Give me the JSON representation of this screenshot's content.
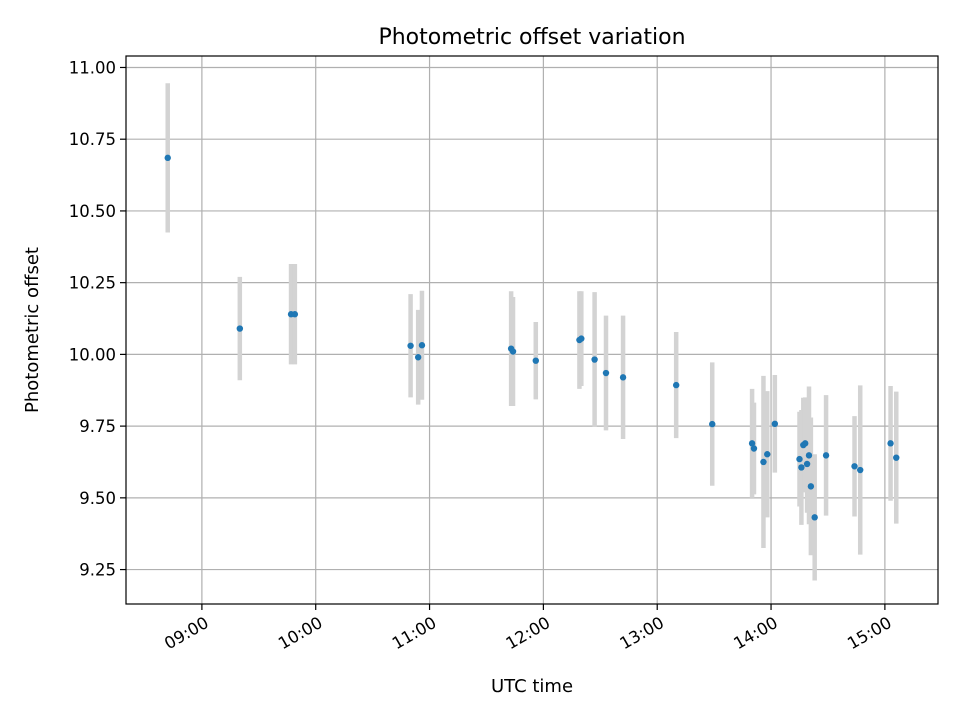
{
  "chart_data": {
    "type": "scatter",
    "title": "Photometric offset variation",
    "xlabel": "UTC time",
    "ylabel": "Photometric offset",
    "xlim": [
      "08:20",
      "15:28"
    ],
    "ylim": [
      9.13,
      11.04
    ],
    "grid": true,
    "x_ticks": [
      "09:00",
      "10:00",
      "11:00",
      "12:00",
      "13:00",
      "14:00",
      "15:00"
    ],
    "y_ticks": [
      "9.25",
      "9.50",
      "9.75",
      "10.00",
      "10.25",
      "10.50",
      "10.75",
      "11.00"
    ],
    "marker_color": "#1f77b4",
    "errorbar_color": "#d3d3d3",
    "points": [
      {
        "time": "08:42",
        "y": 10.685,
        "err": 0.26
      },
      {
        "time": "09:20",
        "y": 10.09,
        "err": 0.18
      },
      {
        "time": "09:47",
        "y": 10.14,
        "err": 0.175
      },
      {
        "time": "09:49",
        "y": 10.14,
        "err": 0.175
      },
      {
        "time": "10:50",
        "y": 10.03,
        "err": 0.18
      },
      {
        "time": "10:54",
        "y": 9.99,
        "err": 0.165
      },
      {
        "time": "10:56",
        "y": 10.032,
        "err": 0.19
      },
      {
        "time": "11:43",
        "y": 10.02,
        "err": 0.2
      },
      {
        "time": "11:44",
        "y": 10.01,
        "err": 0.19
      },
      {
        "time": "11:56",
        "y": 9.978,
        "err": 0.135
      },
      {
        "time": "12:19",
        "y": 10.05,
        "err": 0.17
      },
      {
        "time": "12:20",
        "y": 10.055,
        "err": 0.165
      },
      {
        "time": "12:27",
        "y": 9.982,
        "err": 0.235
      },
      {
        "time": "12:33",
        "y": 9.935,
        "err": 0.2
      },
      {
        "time": "12:42",
        "y": 9.92,
        "err": 0.215
      },
      {
        "time": "13:10",
        "y": 9.893,
        "err": 0.185
      },
      {
        "time": "13:29",
        "y": 9.757,
        "err": 0.215
      },
      {
        "time": "13:50",
        "y": 9.69,
        "err": 0.19
      },
      {
        "time": "13:51",
        "y": 9.672,
        "err": 0.16
      },
      {
        "time": "13:56",
        "y": 9.625,
        "err": 0.3
      },
      {
        "time": "13:58",
        "y": 9.652,
        "err": 0.22
      },
      {
        "time": "14:02",
        "y": 9.758,
        "err": 0.17
      },
      {
        "time": "14:15",
        "y": 9.635,
        "err": 0.165
      },
      {
        "time": "14:16",
        "y": 9.606,
        "err": 0.2
      },
      {
        "time": "14:17",
        "y": 9.684,
        "err": 0.165
      },
      {
        "time": "14:18",
        "y": 9.69,
        "err": 0.16
      },
      {
        "time": "14:19",
        "y": 9.618,
        "err": 0.17
      },
      {
        "time": "14:20",
        "y": 9.648,
        "err": 0.24
      },
      {
        "time": "14:21",
        "y": 9.54,
        "err": 0.24
      },
      {
        "time": "14:23",
        "y": 9.432,
        "err": 0.22
      },
      {
        "time": "14:29",
        "y": 9.648,
        "err": 0.21
      },
      {
        "time": "14:44",
        "y": 9.61,
        "err": 0.175
      },
      {
        "time": "14:47",
        "y": 9.597,
        "err": 0.295
      },
      {
        "time": "15:03",
        "y": 9.69,
        "err": 0.2
      },
      {
        "time": "15:06",
        "y": 9.64,
        "err": 0.23
      }
    ]
  }
}
